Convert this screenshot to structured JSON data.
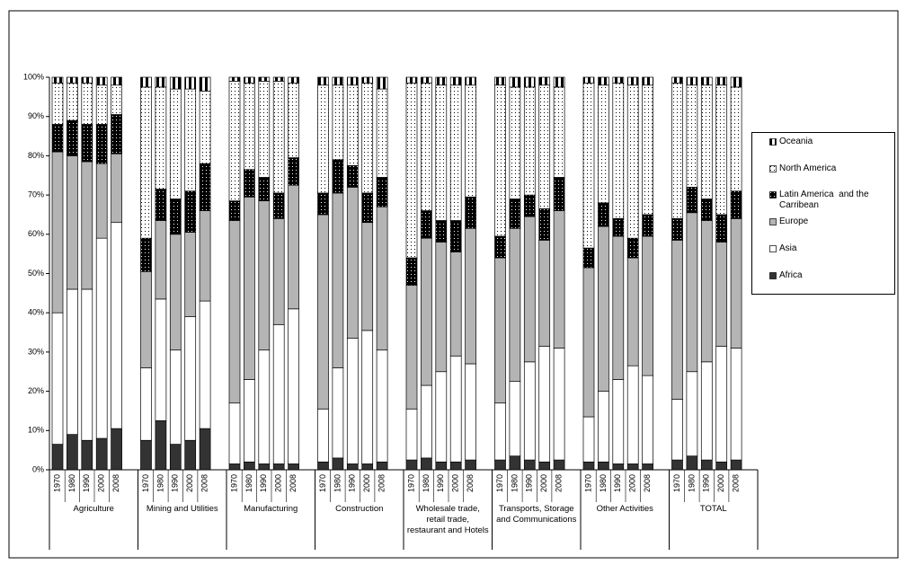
{
  "chart_data": {
    "type": "stacked-bar",
    "groups": [
      "Agriculture",
      "Mining and Utilities",
      "Manufacturing",
      "Construction",
      "Wholesale trade, retail trade, restaurant and Hotels",
      "Transports, Storage and Communications",
      "Other Activities",
      "TOTAL"
    ],
    "categories": [
      "1970",
      "1980",
      "1990",
      "2000",
      "2008",
      "1970",
      "1980",
      "1990",
      "2000",
      "2008",
      "1970",
      "1980",
      "1990",
      "2000",
      "2008",
      "1970",
      "1980",
      "1990",
      "2000",
      "2008",
      "1970",
      "1980",
      "1990",
      "2000",
      "2008",
      "1970",
      "1980",
      "1990",
      "2000",
      "2008",
      "1970",
      "1980",
      "1990",
      "2000",
      "2008",
      "1970",
      "1980",
      "1990",
      "2000",
      "2008"
    ],
    "series": [
      {
        "name": "Africa",
        "color": "#333333",
        "pattern": "solid",
        "values": [
          6.5,
          9,
          7.5,
          8,
          10.5,
          7.5,
          12.5,
          6.5,
          7.5,
          10.5,
          1.5,
          2,
          1.5,
          1.5,
          1.5,
          2,
          3,
          1.5,
          1.5,
          2,
          2.5,
          3,
          2,
          2,
          2.5,
          2.5,
          3.5,
          2.5,
          2,
          2.5,
          2,
          2,
          1.5,
          1.5,
          1.5,
          2.5,
          3.5,
          2.5,
          2,
          2.5
        ]
      },
      {
        "name": "Asia",
        "color": "#ffffff",
        "pattern": "solid",
        "values": [
          33.5,
          37,
          38.5,
          51,
          52.5,
          18.5,
          31,
          24,
          31.5,
          32.5,
          15.5,
          21,
          29,
          35.5,
          39.5,
          13.5,
          23,
          32,
          34,
          28.5,
          13,
          18.5,
          23,
          27,
          24.5,
          14.5,
          19,
          25,
          29.5,
          28.5,
          11.5,
          18,
          21.5,
          25,
          22.5,
          15.5,
          21.5,
          25,
          29.5,
          28.5
        ]
      },
      {
        "name": "Europe",
        "color": "#b4b4b4",
        "pattern": "solid",
        "values": [
          41,
          34,
          32.5,
          19,
          17.5,
          24.5,
          20,
          29.5,
          21.5,
          23,
          46.5,
          46.5,
          38,
          27,
          31.5,
          49.5,
          44.5,
          38.5,
          27.5,
          36.5,
          31.5,
          37.5,
          33,
          26.5,
          34.5,
          37,
          39,
          37,
          27,
          35,
          38,
          42,
          36.5,
          27.5,
          35.5,
          40.5,
          40.5,
          36,
          26.5,
          33
        ]
      },
      {
        "name": "Latin America  and the Carribean",
        "color": "#000000",
        "pattern": "dots",
        "values": [
          7,
          9,
          9.5,
          10,
          10,
          8.5,
          8,
          9,
          10.5,
          12,
          5,
          7,
          6,
          6.5,
          7,
          5.5,
          8.5,
          5.5,
          7.5,
          7.5,
          7,
          7,
          5.5,
          8,
          8,
          5.5,
          7.5,
          5.5,
          8,
          8.5,
          5,
          6,
          4.5,
          5,
          5.5,
          5.5,
          6.5,
          5.5,
          7,
          7
        ]
      },
      {
        "name": "North America",
        "color": "#ffffff",
        "pattern": "dots",
        "values": [
          10.5,
          9.5,
          10.5,
          10,
          7.5,
          38.5,
          26,
          28,
          26,
          18.5,
          30.5,
          22,
          24.5,
          28.5,
          19,
          27.5,
          19,
          20.5,
          28,
          22.5,
          44.5,
          32.5,
          34.5,
          34.5,
          28.5,
          38.5,
          28.5,
          27.5,
          31.5,
          23,
          42,
          30,
          34.5,
          39,
          33,
          34.5,
          26,
          29,
          33,
          26.5
        ]
      },
      {
        "name": "Oceania",
        "color": "#ffffff",
        "pattern": "stripes",
        "values": [
          1.5,
          1.5,
          1.5,
          2,
          2,
          2.5,
          2.5,
          3,
          3,
          3.5,
          1,
          1.5,
          1,
          1,
          1.5,
          2,
          2,
          2,
          1.5,
          3,
          1.5,
          1.5,
          2,
          2,
          2,
          2,
          2.5,
          2.5,
          2,
          2.5,
          1.5,
          2,
          1.5,
          2,
          2,
          1.5,
          2,
          2,
          2,
          2.5
        ]
      }
    ],
    "ylim": [
      0,
      100
    ],
    "yticks": [
      {
        "value": 0,
        "label": "0%"
      },
      {
        "value": 10,
        "label": "10%"
      },
      {
        "value": 20,
        "label": "20%"
      },
      {
        "value": 30,
        "label": "30%"
      },
      {
        "value": 40,
        "label": "40%"
      },
      {
        "value": 50,
        "label": "50%"
      },
      {
        "value": 60,
        "label": "60%"
      },
      {
        "value": 70,
        "label": "70%"
      },
      {
        "value": 80,
        "label": "80%"
      },
      {
        "value": 90,
        "label": "90%"
      },
      {
        "value": 100,
        "label": "100%"
      }
    ],
    "legend": "right"
  }
}
